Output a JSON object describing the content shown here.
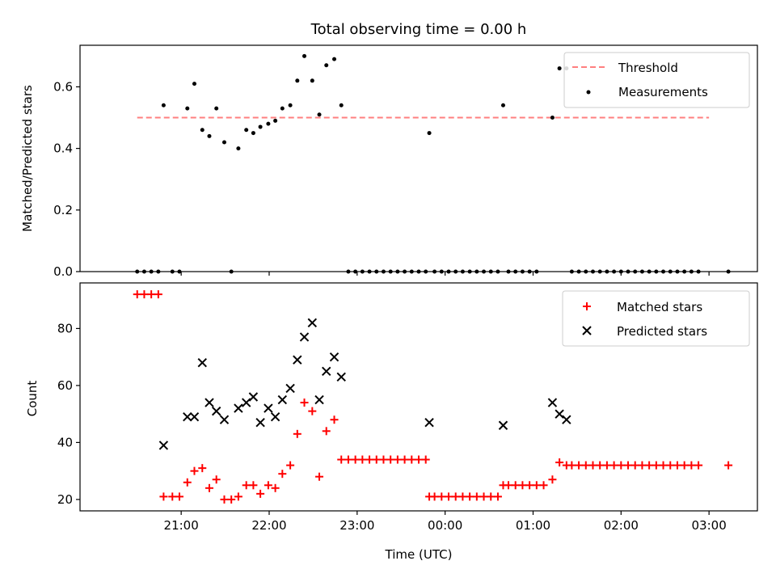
{
  "chart_data": {
    "type": "scatter",
    "title": "Total observing time = 0.00 h",
    "xlabel": "Time (UTC)",
    "x_ticks": [
      "21:00",
      "22:00",
      "23:00",
      "00:00",
      "01:00",
      "02:00",
      "03:00"
    ],
    "x_tick_hours": [
      21,
      22,
      23,
      24,
      25,
      26,
      27
    ],
    "xlim_hours": [
      19.85,
      27.55
    ],
    "top": {
      "ylabel": "Matched/Predicted stars",
      "ylim": [
        0,
        0.735
      ],
      "y_ticks": [
        0.0,
        0.2,
        0.4,
        0.6
      ],
      "y_tick_labels": [
        "0.0",
        "0.2",
        "0.4",
        "0.6"
      ],
      "legend": [
        "Threshold",
        "Measurements"
      ],
      "legend_position": "upper right",
      "threshold": {
        "name": "Threshold",
        "value": 0.5,
        "x_range": [
          20.5,
          27.0
        ],
        "color": "#ff7f7f"
      },
      "measurements": {
        "name": "Measurements",
        "color": "#000000",
        "points": [
          [
            20.5,
            0
          ],
          [
            20.58,
            0
          ],
          [
            20.66,
            0
          ],
          [
            20.74,
            0
          ],
          [
            20.8,
            0.54
          ],
          [
            20.9,
            0
          ],
          [
            20.98,
            0
          ],
          [
            21.07,
            0.53
          ],
          [
            21.15,
            0.61
          ],
          [
            21.24,
            0.46
          ],
          [
            21.32,
            0.44
          ],
          [
            21.4,
            0.53
          ],
          [
            21.49,
            0.42
          ],
          [
            21.57,
            0
          ],
          [
            21.65,
            0.4
          ],
          [
            21.74,
            0.46
          ],
          [
            21.82,
            0.45
          ],
          [
            21.9,
            0.47
          ],
          [
            21.99,
            0.48
          ],
          [
            22.07,
            0.49
          ],
          [
            22.15,
            0.53
          ],
          [
            22.24,
            0.54
          ],
          [
            22.32,
            0.62
          ],
          [
            22.4,
            0.7
          ],
          [
            22.49,
            0.62
          ],
          [
            22.57,
            0.51
          ],
          [
            22.65,
            0.67
          ],
          [
            22.74,
            0.69
          ],
          [
            22.82,
            0.54
          ],
          [
            22.9,
            0
          ],
          [
            22.98,
            0
          ],
          [
            23.06,
            0
          ],
          [
            23.14,
            0
          ],
          [
            23.22,
            0
          ],
          [
            23.3,
            0
          ],
          [
            23.38,
            0
          ],
          [
            23.46,
            0
          ],
          [
            23.54,
            0
          ],
          [
            23.62,
            0
          ],
          [
            23.7,
            0
          ],
          [
            23.78,
            0
          ],
          [
            23.82,
            0.45
          ],
          [
            23.88,
            0
          ],
          [
            23.96,
            0
          ],
          [
            24.04,
            0
          ],
          [
            24.12,
            0
          ],
          [
            24.2,
            0
          ],
          [
            24.28,
            0
          ],
          [
            24.36,
            0
          ],
          [
            24.44,
            0
          ],
          [
            24.52,
            0
          ],
          [
            24.6,
            0
          ],
          [
            24.66,
            0.54
          ],
          [
            24.72,
            0
          ],
          [
            24.8,
            0
          ],
          [
            24.88,
            0
          ],
          [
            24.96,
            0
          ],
          [
            25.04,
            0
          ],
          [
            25.22,
            0.5
          ],
          [
            25.3,
            0.66
          ],
          [
            25.38,
            0.66
          ],
          [
            25.44,
            0
          ],
          [
            25.52,
            0
          ],
          [
            25.6,
            0
          ],
          [
            25.68,
            0
          ],
          [
            25.76,
            0
          ],
          [
            25.84,
            0
          ],
          [
            25.92,
            0
          ],
          [
            26.0,
            0
          ],
          [
            26.08,
            0
          ],
          [
            26.16,
            0
          ],
          [
            26.24,
            0
          ],
          [
            26.32,
            0
          ],
          [
            26.4,
            0
          ],
          [
            26.48,
            0
          ],
          [
            26.56,
            0
          ],
          [
            26.64,
            0
          ],
          [
            26.72,
            0
          ],
          [
            26.8,
            0
          ],
          [
            26.88,
            0
          ],
          [
            27.22,
            0
          ]
        ]
      }
    },
    "bottom": {
      "ylabel": "Count",
      "ylim": [
        16,
        96
      ],
      "y_ticks": [
        20,
        40,
        60,
        80
      ],
      "y_tick_labels": [
        "20",
        "40",
        "60",
        "80"
      ],
      "legend": [
        "Matched stars",
        "Predicted stars"
      ],
      "legend_position": "upper right",
      "series": [
        {
          "name": "Matched stars",
          "marker": "plus",
          "color": "#ff0000",
          "points": [
            [
              20.5,
              92
            ],
            [
              20.58,
              92
            ],
            [
              20.66,
              92
            ],
            [
              20.74,
              92
            ],
            [
              20.8,
              21
            ],
            [
              20.9,
              21
            ],
            [
              20.98,
              21
            ],
            [
              21.07,
              26
            ],
            [
              21.15,
              30
            ],
            [
              21.24,
              31
            ],
            [
              21.32,
              24
            ],
            [
              21.4,
              27
            ],
            [
              21.49,
              20
            ],
            [
              21.57,
              20
            ],
            [
              21.65,
              21
            ],
            [
              21.74,
              25
            ],
            [
              21.82,
              25
            ],
            [
              21.9,
              22
            ],
            [
              21.99,
              25
            ],
            [
              22.07,
              24
            ],
            [
              22.15,
              29
            ],
            [
              22.24,
              32
            ],
            [
              22.32,
              43
            ],
            [
              22.4,
              54
            ],
            [
              22.49,
              51
            ],
            [
              22.57,
              28
            ],
            [
              22.65,
              44
            ],
            [
              22.74,
              48
            ],
            [
              22.82,
              34
            ],
            [
              22.9,
              34
            ],
            [
              22.98,
              34
            ],
            [
              23.06,
              34
            ],
            [
              23.14,
              34
            ],
            [
              23.22,
              34
            ],
            [
              23.3,
              34
            ],
            [
              23.38,
              34
            ],
            [
              23.46,
              34
            ],
            [
              23.54,
              34
            ],
            [
              23.62,
              34
            ],
            [
              23.7,
              34
            ],
            [
              23.78,
              34
            ],
            [
              23.82,
              21
            ],
            [
              23.88,
              21
            ],
            [
              23.96,
              21
            ],
            [
              24.04,
              21
            ],
            [
              24.12,
              21
            ],
            [
              24.2,
              21
            ],
            [
              24.28,
              21
            ],
            [
              24.36,
              21
            ],
            [
              24.44,
              21
            ],
            [
              24.52,
              21
            ],
            [
              24.6,
              21
            ],
            [
              24.66,
              25
            ],
            [
              24.72,
              25
            ],
            [
              24.8,
              25
            ],
            [
              24.88,
              25
            ],
            [
              24.96,
              25
            ],
            [
              25.04,
              25
            ],
            [
              25.12,
              25
            ],
            [
              25.22,
              27
            ],
            [
              25.3,
              33
            ],
            [
              25.38,
              32
            ],
            [
              25.44,
              32
            ],
            [
              25.52,
              32
            ],
            [
              25.6,
              32
            ],
            [
              25.68,
              32
            ],
            [
              25.76,
              32
            ],
            [
              25.84,
              32
            ],
            [
              25.92,
              32
            ],
            [
              26.0,
              32
            ],
            [
              26.08,
              32
            ],
            [
              26.16,
              32
            ],
            [
              26.24,
              32
            ],
            [
              26.32,
              32
            ],
            [
              26.4,
              32
            ],
            [
              26.48,
              32
            ],
            [
              26.56,
              32
            ],
            [
              26.64,
              32
            ],
            [
              26.72,
              32
            ],
            [
              26.8,
              32
            ],
            [
              26.88,
              32
            ],
            [
              27.22,
              32
            ]
          ]
        },
        {
          "name": "Predicted stars",
          "marker": "x",
          "color": "#000000",
          "points": [
            [
              20.8,
              39
            ],
            [
              21.07,
              49
            ],
            [
              21.15,
              49
            ],
            [
              21.24,
              68
            ],
            [
              21.32,
              54
            ],
            [
              21.4,
              51
            ],
            [
              21.49,
              48
            ],
            [
              21.65,
              52
            ],
            [
              21.74,
              54
            ],
            [
              21.82,
              56
            ],
            [
              21.9,
              47
            ],
            [
              21.99,
              52
            ],
            [
              22.07,
              49
            ],
            [
              22.15,
              55
            ],
            [
              22.24,
              59
            ],
            [
              22.32,
              69
            ],
            [
              22.4,
              77
            ],
            [
              22.49,
              82
            ],
            [
              22.57,
              55
            ],
            [
              22.65,
              65
            ],
            [
              22.74,
              70
            ],
            [
              22.82,
              63
            ],
            [
              23.82,
              47
            ],
            [
              24.66,
              46
            ],
            [
              25.22,
              54
            ],
            [
              25.3,
              50
            ],
            [
              25.38,
              48
            ]
          ]
        }
      ]
    }
  }
}
